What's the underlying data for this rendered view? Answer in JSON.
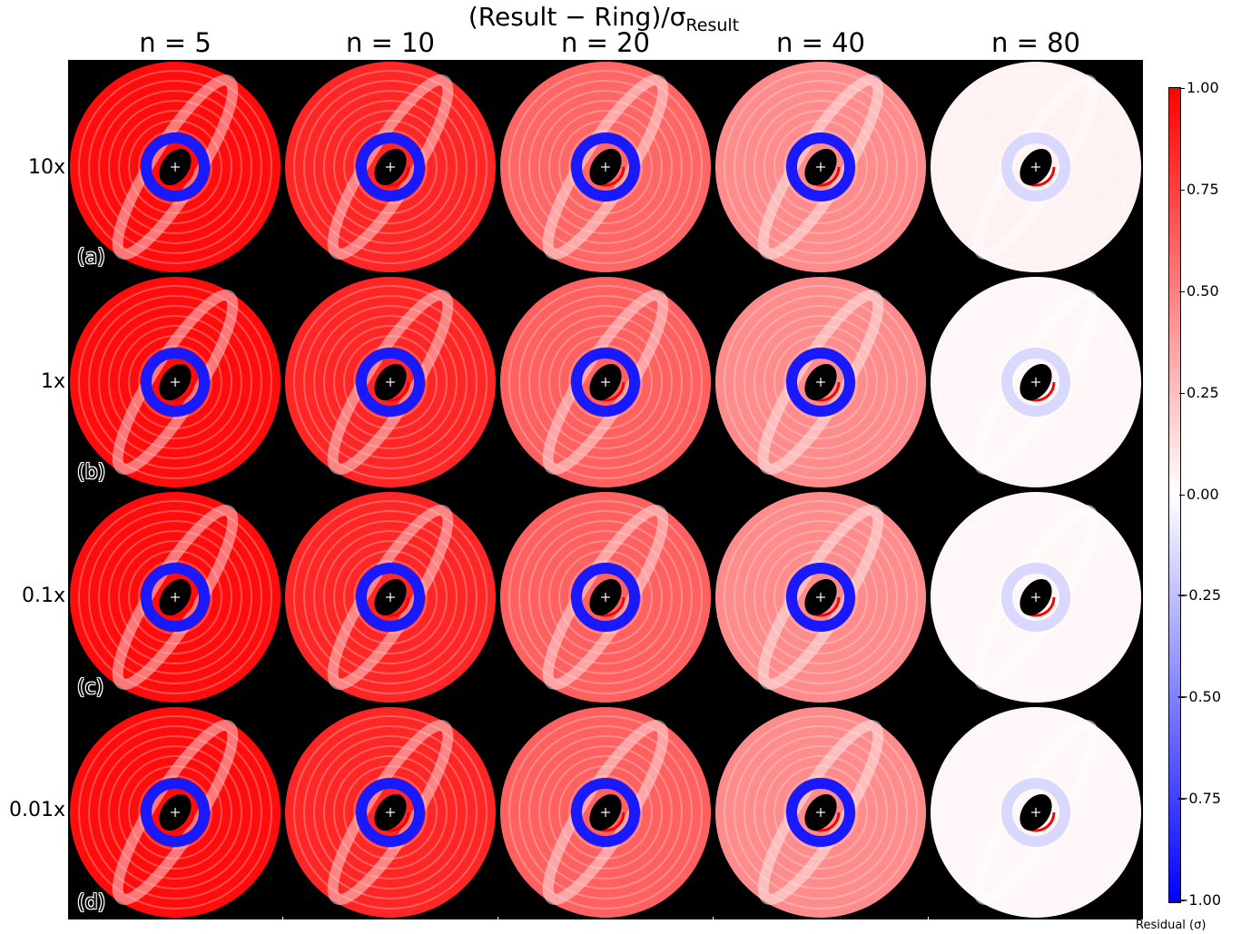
{
  "title": {
    "main": "(Result − Ring)/σ",
    "sub": "Result"
  },
  "columns": [
    "n = 5",
    "n = 10",
    "n = 20",
    "n = 40",
    "n = 80"
  ],
  "rows": [
    "10x",
    "1x",
    "0.1x",
    "0.01x"
  ],
  "panel_tags": [
    "(a)",
    "(b)",
    "(c)",
    "(d)"
  ],
  "colorbar": {
    "label": "Residual (σ)",
    "ticks": [
      "1.00",
      "0.75",
      "0.50",
      "0.25",
      "0.00",
      "−0.25",
      "−0.50",
      "−0.75",
      "−1.00"
    ],
    "colors": {
      "max": "#ff0000",
      "mid": "#ffffff",
      "min": "#0000ff"
    }
  },
  "chart_data": {
    "type": "heatmap",
    "title": "(Result − Ring)/σResult",
    "xlabel": "",
    "ylabel": "",
    "colorbar_range": [
      -1.0,
      1.0
    ],
    "colorbar_label": "Residual (σ)",
    "colormap": "bwr",
    "grid_columns": [
      "n = 5",
      "n = 10",
      "n = 20",
      "n = 40",
      "n = 80"
    ],
    "grid_rows": [
      "10x",
      "1x",
      "0.1x",
      "0.01x"
    ],
    "panel_mean_residual": [
      [
        0.95,
        0.85,
        0.6,
        0.45,
        0.05
      ],
      [
        0.95,
        0.85,
        0.62,
        0.45,
        0.03
      ],
      [
        0.95,
        0.85,
        0.62,
        0.45,
        0.03
      ],
      [
        0.95,
        0.85,
        0.62,
        0.45,
        0.03
      ]
    ]
  }
}
